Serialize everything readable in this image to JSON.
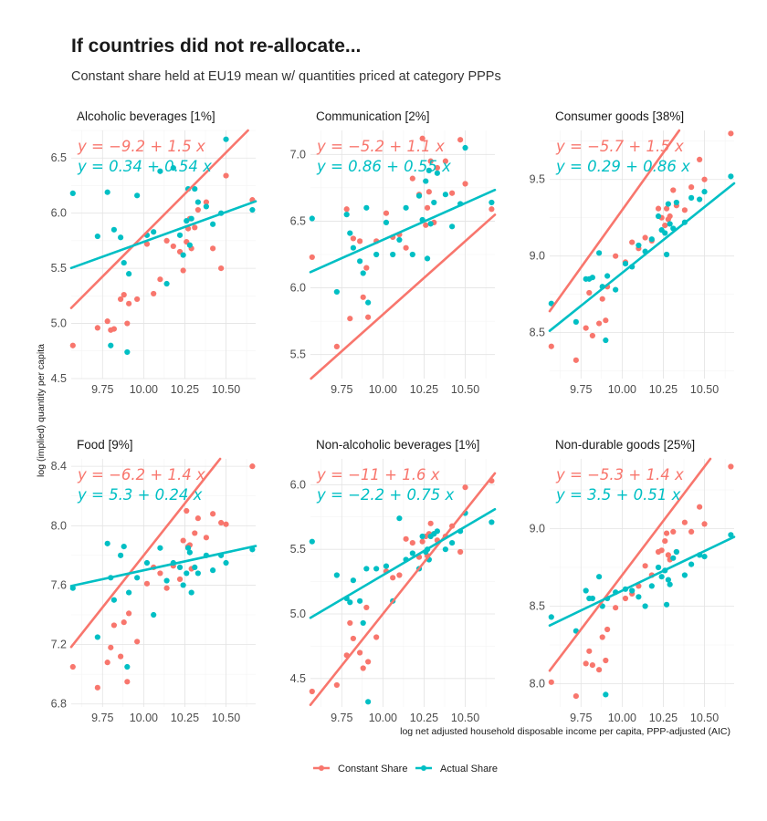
{
  "chart_data": {
    "type": "scatter",
    "title": "If countries did not re-allocate...",
    "subtitle": "Constant share held at EU19 mean w/ quantities priced at category PPPs",
    "ylabel": "log (implied) quantity per capita",
    "xlabel": "log net adjusted household disposable income per capita, PPP-adjusted (AIC)",
    "xlim": [
      9.56,
      10.68
    ],
    "xticks": [
      9.75,
      10.0,
      10.25,
      10.5
    ],
    "xtick_labels": [
      "9.75",
      "10.00",
      "10.25",
      "10.50"
    ],
    "x": [
      9.57,
      9.72,
      9.78,
      9.8,
      9.82,
      9.86,
      9.88,
      9.9,
      9.91,
      9.96,
      10.02,
      10.06,
      10.1,
      10.14,
      10.18,
      10.22,
      10.24,
      10.26,
      10.27,
      10.28,
      10.29,
      10.31,
      10.33,
      10.38,
      10.42,
      10.47,
      10.5,
      10.66
    ],
    "series_meta": [
      {
        "name": "Constant Share",
        "color": "#F8766D"
      },
      {
        "name": "Actual Share",
        "color": "#00BFC4"
      }
    ],
    "legend": {
      "position": "bottom",
      "entries": [
        "Constant Share",
        "Actual Share"
      ]
    },
    "panels": [
      {
        "title": "Alcoholic beverages [1%]",
        "ylim": [
          4.5,
          6.75
        ],
        "yticks": [
          4.5,
          5.0,
          5.5,
          6.0,
          6.5
        ],
        "ytick_labels": [
          "4.5",
          "5.0",
          "5.5",
          "6.0",
          "6.5"
        ],
        "equations": [
          "y = −9.2 + 1.5 x",
          "y = 0.34 + 0.54 x"
        ],
        "fits": [
          {
            "intercept": -9.2,
            "slope": 1.5
          },
          {
            "intercept": 0.34,
            "slope": 0.54
          }
        ],
        "series": [
          {
            "name": "Constant Share",
            "values": [
              4.8,
              4.96,
              5.02,
              4.94,
              4.95,
              5.22,
              5.26,
              5.0,
              5.18,
              5.22,
              5.72,
              5.27,
              5.4,
              5.75,
              5.7,
              5.65,
              5.48,
              5.74,
              5.86,
              5.95,
              5.68,
              5.87,
              6.03,
              6.1,
              5.68,
              5.5,
              6.34,
              6.12
            ]
          },
          {
            "name": "Actual Share",
            "values": [
              6.18,
              5.79,
              6.19,
              4.8,
              5.85,
              5.78,
              5.55,
              4.74,
              5.45,
              6.16,
              5.8,
              5.83,
              6.38,
              5.36,
              6.41,
              5.8,
              5.62,
              5.93,
              6.22,
              5.71,
              5.95,
              6.22,
              6.1,
              6.06,
              5.9,
              6.0,
              6.67,
              6.03
            ]
          }
        ]
      },
      {
        "title": "Communication [2%]",
        "ylim": [
          5.32,
          7.18
        ],
        "yticks": [
          5.5,
          6.0,
          6.5,
          7.0
        ],
        "ytick_labels": [
          "5.5",
          "6.0",
          "6.5",
          "7.0"
        ],
        "equations": [
          "y = −5.2 + 1.1 x",
          "y = 0.86 + 0.55 x"
        ],
        "fits": [
          {
            "intercept": -5.2,
            "slope": 1.1
          },
          {
            "intercept": 0.86,
            "slope": 0.55
          }
        ],
        "series": [
          {
            "name": "Constant Share",
            "values": [
              6.23,
              5.56,
              6.59,
              5.77,
              6.37,
              6.35,
              5.93,
              6.15,
              5.78,
              6.35,
              6.56,
              6.38,
              6.4,
              6.3,
              6.82,
              6.7,
              7.12,
              6.47,
              6.6,
              6.72,
              6.95,
              6.49,
              6.9,
              6.95,
              6.71,
              7.11,
              6.78,
              6.59
            ]
          },
          {
            "name": "Actual Share",
            "values": [
              6.52,
              5.97,
              6.55,
              6.41,
              6.3,
              6.2,
              6.11,
              6.6,
              5.89,
              6.25,
              6.49,
              6.25,
              6.36,
              6.6,
              6.25,
              6.69,
              6.51,
              6.8,
              6.22,
              6.88,
              6.48,
              6.64,
              6.86,
              6.7,
              6.46,
              6.63,
              7.05,
              6.64
            ]
          }
        ]
      },
      {
        "title": "Consumer goods [38%]",
        "ylim": [
          8.2,
          9.82
        ],
        "yticks": [
          8.5,
          9.0,
          9.5
        ],
        "ytick_labels": [
          "8.5",
          "9.0",
          "9.5"
        ],
        "equations": [
          "y = −5.7 + 1.5 x",
          "y = 0.29 + 0.86 x"
        ],
        "fits": [
          {
            "intercept": -5.7,
            "slope": 1.5
          },
          {
            "intercept": 0.29,
            "slope": 0.86
          }
        ],
        "series": [
          {
            "name": "Constant Share",
            "values": [
              8.41,
              8.32,
              8.53,
              8.76,
              8.48,
              8.56,
              8.72,
              8.58,
              8.8,
              9.0,
              8.96,
              9.09,
              9.05,
              9.12,
              9.1,
              9.31,
              9.25,
              9.2,
              9.31,
              9.24,
              9.26,
              9.43,
              9.33,
              9.3,
              9.45,
              9.63,
              9.5,
              9.8
            ]
          },
          {
            "name": "Actual Share",
            "values": [
              8.69,
              8.57,
              8.85,
              8.85,
              8.86,
              9.02,
              8.8,
              8.45,
              8.87,
              8.78,
              8.95,
              8.93,
              9.07,
              9.03,
              9.11,
              9.26,
              9.17,
              9.15,
              9.01,
              9.34,
              9.21,
              9.18,
              9.35,
              9.22,
              9.38,
              9.37,
              9.42,
              9.52
            ]
          }
        ]
      },
      {
        "title": "Food [9%]",
        "ylim": [
          6.78,
          8.45
        ],
        "yticks": [
          6.8,
          7.2,
          7.6,
          8.0,
          8.4
        ],
        "ytick_labels": [
          "6.8",
          "7.2",
          "7.6",
          "8.0",
          "8.4"
        ],
        "equations": [
          "y = −6.2 + 1.4 x",
          "y = 5.3 + 0.24 x"
        ],
        "fits": [
          {
            "intercept": -6.2,
            "slope": 1.4
          },
          {
            "intercept": 5.3,
            "slope": 0.24
          }
        ],
        "series": [
          {
            "name": "Constant Share",
            "values": [
              7.05,
              6.91,
              7.08,
              7.18,
              7.33,
              7.12,
              7.35,
              6.95,
              7.41,
              7.22,
              7.61,
              7.72,
              7.68,
              7.58,
              7.73,
              7.64,
              7.9,
              8.1,
              7.86,
              7.87,
              7.71,
              7.95,
              8.05,
              7.92,
              8.08,
              8.02,
              8.01,
              8.4
            ]
          },
          {
            "name": "Actual Share",
            "values": [
              7.58,
              7.25,
              7.88,
              7.65,
              7.5,
              7.8,
              7.86,
              7.05,
              7.55,
              7.65,
              7.75,
              7.4,
              7.85,
              7.63,
              7.75,
              7.72,
              7.6,
              7.68,
              7.85,
              7.82,
              7.55,
              7.72,
              7.68,
              7.8,
              7.7,
              7.8,
              7.75,
              7.84
            ]
          }
        ]
      },
      {
        "title": "Non-alcoholic beverages [1%]",
        "ylim": [
          4.28,
          6.2
        ],
        "yticks": [
          4.5,
          5.0,
          5.5,
          6.0
        ],
        "ytick_labels": [
          "4.5",
          "5.0",
          "5.5",
          "6.0"
        ],
        "equations": [
          "y = −11 + 1.6 x",
          "y = −2.2 + 0.75 x"
        ],
        "fits": [
          {
            "intercept": -11.0,
            "slope": 1.6
          },
          {
            "intercept": -2.2,
            "slope": 0.75
          }
        ],
        "series": [
          {
            "name": "Constant Share",
            "values": [
              4.4,
              4.45,
              4.68,
              4.93,
              4.81,
              4.7,
              4.58,
              5.05,
              4.63,
              4.82,
              5.33,
              5.28,
              5.3,
              5.58,
              5.55,
              5.44,
              5.56,
              5.6,
              5.45,
              5.62,
              5.7,
              5.62,
              5.57,
              5.6,
              5.68,
              5.48,
              5.98,
              6.03
            ]
          },
          {
            "name": "Actual Share",
            "values": [
              5.56,
              5.3,
              5.12,
              5.09,
              5.26,
              5.1,
              4.93,
              5.35,
              4.32,
              5.35,
              5.37,
              5.1,
              5.74,
              5.42,
              5.47,
              5.35,
              5.6,
              5.48,
              5.5,
              5.42,
              5.6,
              5.62,
              5.64,
              5.5,
              5.55,
              5.64,
              5.78,
              5.71
            ]
          }
        ]
      },
      {
        "title": "Non-durable goods [25%]",
        "ylim": [
          7.85,
          9.45
        ],
        "yticks": [
          8.0,
          8.5,
          9.0
        ],
        "ytick_labels": [
          "8.0",
          "8.5",
          "9.0"
        ],
        "equations": [
          "y = −5.3 + 1.4 x",
          "y = 3.5 + 0.51 x"
        ],
        "fits": [
          {
            "intercept": -5.3,
            "slope": 1.4
          },
          {
            "intercept": 3.5,
            "slope": 0.51
          }
        ],
        "series": [
          {
            "name": "Constant Share",
            "values": [
              8.01,
              7.92,
              8.13,
              8.21,
              8.12,
              8.09,
              8.3,
              8.15,
              8.35,
              8.49,
              8.55,
              8.58,
              8.63,
              8.76,
              8.7,
              8.85,
              8.86,
              8.92,
              8.97,
              8.83,
              8.8,
              8.98,
              8.85,
              9.04,
              8.98,
              9.14,
              9.03,
              9.4
            ]
          },
          {
            "name": "Actual Share",
            "values": [
              8.43,
              8.34,
              8.6,
              8.55,
              8.55,
              8.69,
              8.5,
              7.93,
              8.55,
              8.59,
              8.61,
              8.6,
              8.56,
              8.5,
              8.63,
              8.75,
              8.69,
              8.73,
              8.51,
              8.67,
              8.64,
              8.81,
              8.85,
              8.7,
              8.77,
              8.83,
              8.82,
              8.96
            ]
          }
        ]
      }
    ]
  }
}
